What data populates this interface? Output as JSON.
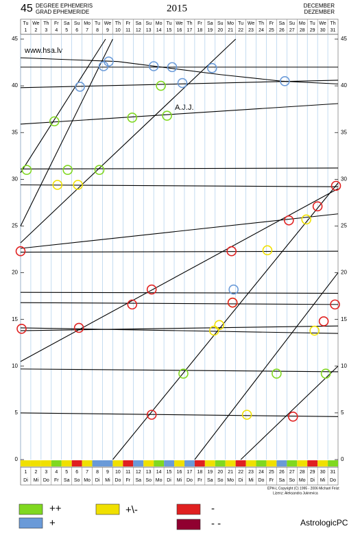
{
  "chart_data": {
    "type": "line",
    "header_left_number": "45",
    "header_left_1": "DEGREE EPHEMERIS",
    "header_left_2": "GRAD EPHEMERIDE",
    "title": "2015",
    "header_right_1": "DECEMBER",
    "header_right_2": "DEZEMBER",
    "site": "www.hsa.lv",
    "annotation": "A.J.J.",
    "footer_1": "EPH-L Copyright (C) 1995 - 2006 Michael Feist",
    "footer_2": "Lizenz: Aleksandra Juknevica",
    "brand": "AstrologicPC",
    "xlim": [
      0.5,
      31.5
    ],
    "ylim": [
      0,
      45
    ],
    "xticks": [
      1,
      2,
      3,
      4,
      5,
      6,
      7,
      8,
      9,
      10,
      11,
      12,
      13,
      14,
      15,
      16,
      17,
      18,
      19,
      20,
      21,
      22,
      23,
      24,
      25,
      26,
      27,
      28,
      29,
      30,
      31
    ],
    "weekdays_en": [
      "Tu",
      "We",
      "Th",
      "Fr",
      "Sa",
      "Su",
      "Mo",
      "Tu",
      "We",
      "Th",
      "Fr",
      "Sa",
      "Su",
      "Mo",
      "Tu",
      "We",
      "Th",
      "Fr",
      "Sa",
      "Su",
      "Mo",
      "Tu",
      "We",
      "Th",
      "Fr",
      "Sa",
      "Su",
      "Mo",
      "Tu",
      "We",
      "Th"
    ],
    "weekdays_de": [
      "Di",
      "Mi",
      "Do",
      "Fr",
      "Sa",
      "So",
      "Mo",
      "Di",
      "Mi",
      "Do",
      "Fr",
      "Sa",
      "So",
      "Mo",
      "Di",
      "Mi",
      "Do",
      "Fr",
      "Sa",
      "So",
      "Mo",
      "Di",
      "Mi",
      "Do",
      "Fr",
      "Sa",
      "So",
      "Mo",
      "Di",
      "Mi",
      "Do"
    ],
    "yticks": [
      0,
      5,
      10,
      15,
      20,
      25,
      30,
      35,
      40,
      45
    ],
    "grid": true,
    "line_color": "#000000",
    "series": [
      {
        "x": [
          0.5,
          31.5
        ],
        "values": [
          42,
          42
        ]
      },
      {
        "x": [
          0.5,
          10,
          20,
          26,
          31.5
        ],
        "values": [
          43,
          42.6,
          41.2,
          40.5,
          40.2
        ]
      },
      {
        "x": [
          0.5,
          31.5
        ],
        "values": [
          39.8,
          40.6
        ]
      },
      {
        "x": [
          0.5,
          31.5
        ],
        "values": [
          35.9,
          38.1
        ]
      },
      {
        "x": [
          0.5,
          31.5
        ],
        "values": [
          31.1,
          31.2
        ]
      },
      {
        "x": [
          0.5,
          31.5
        ],
        "values": [
          29.4,
          29.2
        ]
      },
      {
        "x": [
          0.5,
          31.5
        ],
        "values": [
          22.6,
          26.3
        ]
      },
      {
        "x": [
          0.5,
          31.5
        ],
        "values": [
          22.2,
          22.3
        ]
      },
      {
        "x": [
          0.5,
          31.5
        ],
        "values": [
          17.9,
          17.8
        ]
      },
      {
        "x": [
          0.5,
          31.5
        ],
        "values": [
          16.8,
          16.6
        ]
      },
      {
        "x": [
          0.5,
          31.5
        ],
        "values": [
          14.1,
          13.5
        ]
      },
      {
        "x": [
          0.5,
          31.5
        ],
        "values": [
          13.8,
          14.3
        ]
      },
      {
        "x": [
          0.5,
          31.5
        ],
        "values": [
          9.7,
          9.4
        ]
      },
      {
        "x": [
          0.5,
          31.5
        ],
        "values": [
          5,
          4.6
        ]
      },
      {
        "x": [
          0.5,
          8.8
        ],
        "values": [
          30.7,
          45
        ]
      },
      {
        "x": [
          0.5,
          9.5
        ],
        "values": [
          25,
          45
        ]
      },
      {
        "x": [
          0.5,
          21.5
        ],
        "values": [
          23.2,
          45
        ]
      },
      {
        "x": [
          0.5,
          31.5
        ],
        "values": [
          10.5,
          29
        ]
      },
      {
        "x": [
          9.5,
          31.5
        ],
        "values": [
          0,
          29.6
        ]
      },
      {
        "x": [
          17.5,
          31.5
        ],
        "values": [
          0,
          20
        ]
      },
      {
        "x": [
          22,
          31.5
        ],
        "values": [
          0,
          10
        ]
      }
    ],
    "aspects": [
      {
        "x": 8.6,
        "y": 42.1,
        "color": "#6a9ad8"
      },
      {
        "x": 9.1,
        "y": 42.6,
        "color": "#6a9ad8"
      },
      {
        "x": 13.5,
        "y": 42.1,
        "color": "#6a9ad8"
      },
      {
        "x": 15.3,
        "y": 42,
        "color": "#6a9ad8"
      },
      {
        "x": 16.3,
        "y": 40.3,
        "color": "#6a9ad8"
      },
      {
        "x": 19.2,
        "y": 41.9,
        "color": "#6a9ad8"
      },
      {
        "x": 26.3,
        "y": 40.5,
        "color": "#6a9ad8"
      },
      {
        "x": 6.3,
        "y": 39.9,
        "color": "#6a9ad8"
      },
      {
        "x": 21.3,
        "y": 18.2,
        "color": "#6a9ad8"
      },
      {
        "x": 1.1,
        "y": 31,
        "color": "#80d820"
      },
      {
        "x": 3.8,
        "y": 36.2,
        "color": "#80d820"
      },
      {
        "x": 5.1,
        "y": 31,
        "color": "#80d820"
      },
      {
        "x": 8.2,
        "y": 31,
        "color": "#80d820"
      },
      {
        "x": 11.4,
        "y": 36.6,
        "color": "#80d820"
      },
      {
        "x": 14.2,
        "y": 40,
        "color": "#80d820"
      },
      {
        "x": 14.8,
        "y": 36.8,
        "color": "#80d820"
      },
      {
        "x": 16.4,
        "y": 9.2,
        "color": "#80d820"
      },
      {
        "x": 25.5,
        "y": 9.2,
        "color": "#80d820"
      },
      {
        "x": 30.3,
        "y": 9.2,
        "color": "#80d820"
      },
      {
        "x": 4.1,
        "y": 29.4,
        "color": "#f0e000"
      },
      {
        "x": 6.1,
        "y": 29.4,
        "color": "#f0e000"
      },
      {
        "x": 19.4,
        "y": 13.8,
        "color": "#f0e000"
      },
      {
        "x": 19.9,
        "y": 14.4,
        "color": "#f0e000"
      },
      {
        "x": 21.2,
        "y": 16.8,
        "color": "#f0e000"
      },
      {
        "x": 24.6,
        "y": 22.4,
        "color": "#f0e000"
      },
      {
        "x": 22.6,
        "y": 4.8,
        "color": "#f0e000"
      },
      {
        "x": 28.4,
        "y": 25.7,
        "color": "#f0e000"
      },
      {
        "x": 29.2,
        "y": 13.8,
        "color": "#f0e000"
      },
      {
        "x": 0.5,
        "y": 22.3,
        "color": "#e02020"
      },
      {
        "x": 0.6,
        "y": 14,
        "color": "#e02020"
      },
      {
        "x": 6.2,
        "y": 14.1,
        "color": "#e02020"
      },
      {
        "x": 11.4,
        "y": 16.6,
        "color": "#e02020"
      },
      {
        "x": 13.3,
        "y": 18.2,
        "color": "#e02020"
      },
      {
        "x": 13.3,
        "y": 4.8,
        "color": "#e02020"
      },
      {
        "x": 21.1,
        "y": 22.3,
        "color": "#e02020"
      },
      {
        "x": 21.2,
        "y": 16.8,
        "color": "#e02020"
      },
      {
        "x": 26.7,
        "y": 25.6,
        "color": "#e02020"
      },
      {
        "x": 27.1,
        "y": 4.6,
        "color": "#e02020"
      },
      {
        "x": 29.5,
        "y": 27.1,
        "color": "#e02020"
      },
      {
        "x": 30.1,
        "y": 14.8,
        "color": "#e02020"
      },
      {
        "x": 31.3,
        "y": 29.3,
        "color": "#e02020"
      },
      {
        "x": 31.2,
        "y": 16.6,
        "color": "#e02020"
      }
    ],
    "day_colors": [
      "#f0e000",
      "#f0e000",
      "#f0e000",
      "#80d820",
      "#f0e000",
      "#e02020",
      "#f0e000",
      "#6a9ad8",
      "#6a9ad8",
      "#f0e000",
      "#e02020",
      "#6a9ad8",
      "#f0e000",
      "#80d820",
      "#6a9ad8",
      "#f0e000",
      "#6a9ad8",
      "#e02020",
      "#f0e000",
      "#80d820",
      "#f0e000",
      "#e02020",
      "#f0e000",
      "#80d820",
      "#f0e000",
      "#6a9ad8",
      "#80d820",
      "#f0e000",
      "#e02020",
      "#f0e000",
      "#80d820"
    ],
    "legend": [
      {
        "name": "++",
        "color": "#80d820"
      },
      {
        "name": "+",
        "color": "#6a9ad8"
      },
      {
        "name": "+\\-",
        "color": "#f0e000"
      },
      {
        "name": "-",
        "color": "#e02020"
      },
      {
        "name": "- -",
        "color": "#900030"
      }
    ]
  }
}
